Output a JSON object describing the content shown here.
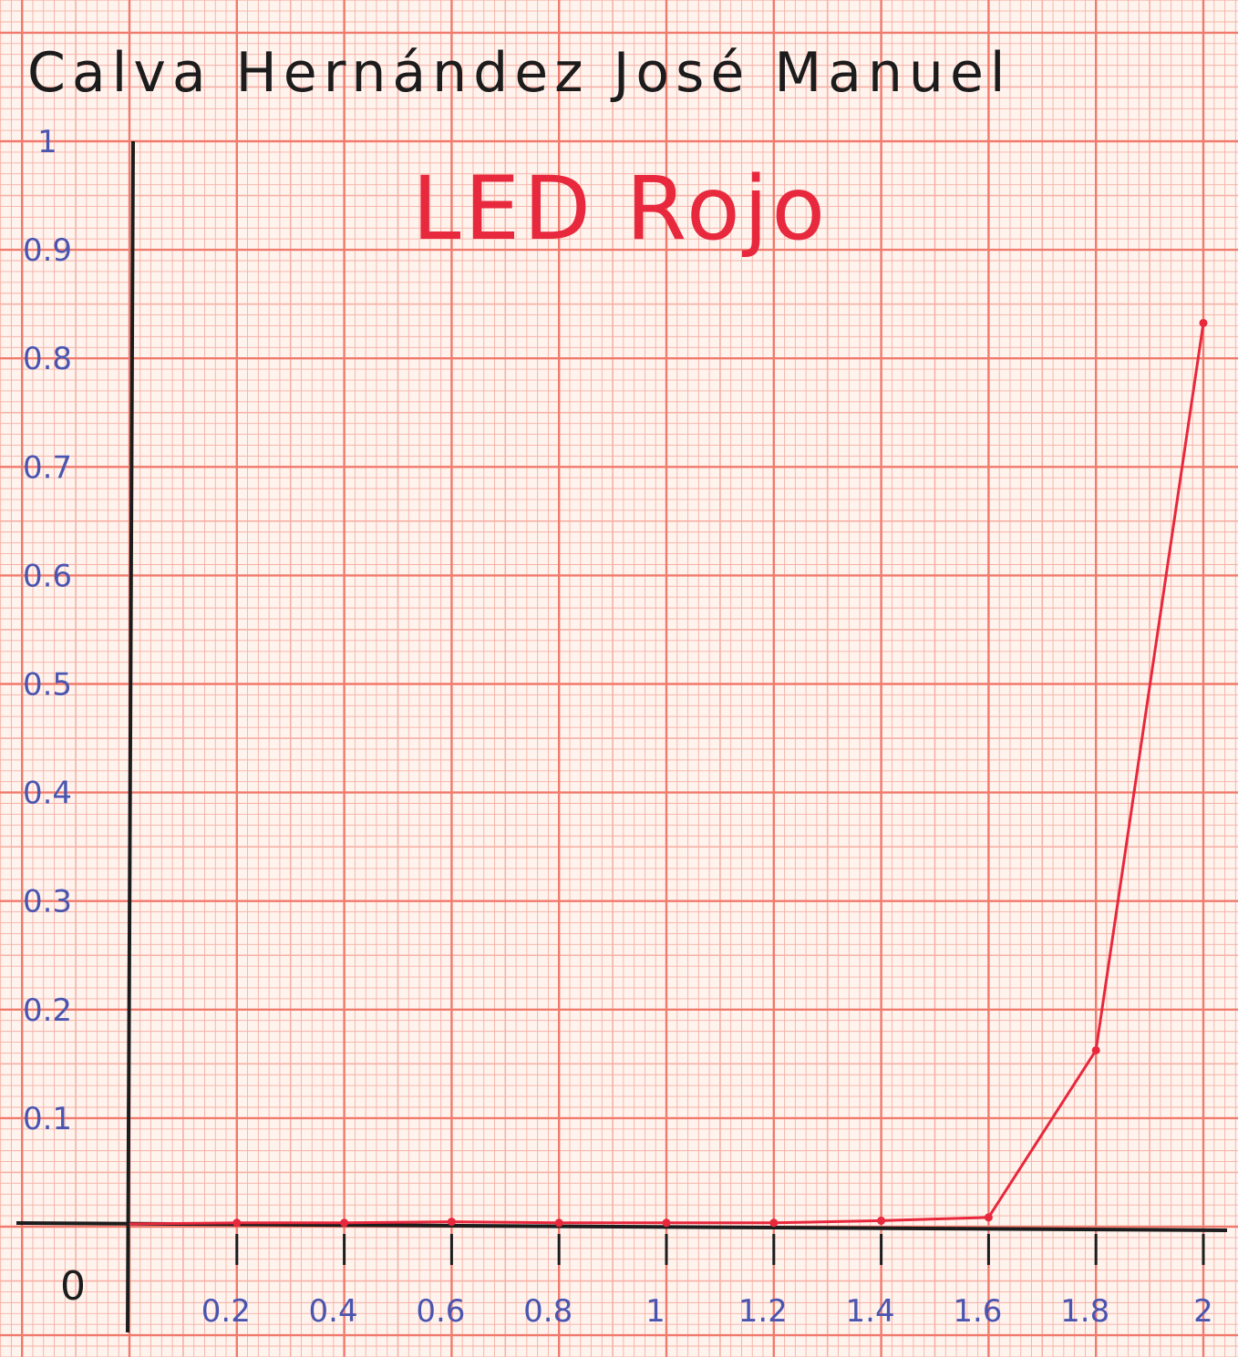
{
  "author": "Calva Hernández José Manuel",
  "chart_data": {
    "type": "line",
    "title": "LED Rojo",
    "xlabel": "",
    "ylabel": "",
    "xlim": [
      0,
      2
    ],
    "ylim": [
      0,
      1
    ],
    "grid": true,
    "origin_label": "0",
    "x_ticks": [
      "0.2",
      "0.4",
      "0.6",
      "0.8",
      "1",
      "1.2",
      "1.4",
      "1.6",
      "1.8",
      "2"
    ],
    "x_tick_values": [
      0.2,
      0.4,
      0.6,
      0.8,
      1.0,
      1.2,
      1.4,
      1.6,
      1.8,
      2.0
    ],
    "y_ticks": [
      "0.1",
      "0.2",
      "0.3",
      "0.4",
      "0.5",
      "0.6",
      "0.7",
      "0.8",
      "0.9",
      "1"
    ],
    "y_tick_values": [
      0.1,
      0.2,
      0.3,
      0.4,
      0.5,
      0.6,
      0.7,
      0.8,
      0.9,
      1.0
    ],
    "series": [
      {
        "x": [
          0,
          0.2,
          0.4,
          0.6,
          0.8,
          1.0,
          1.2,
          1.4,
          1.6,
          1.8,
          2.0
        ],
        "y": [
          0,
          0.001,
          0.001,
          0.002,
          0.001,
          0.001,
          0.001,
          0.003,
          0.006,
          0.16,
          0.83
        ],
        "color": "#e8283c"
      }
    ],
    "colors": {
      "axis": "#1c1c1c",
      "grid_major": "#f07a6c",
      "grid_minor": "#f6b0a4",
      "tick_label": "#4a55b0"
    }
  }
}
